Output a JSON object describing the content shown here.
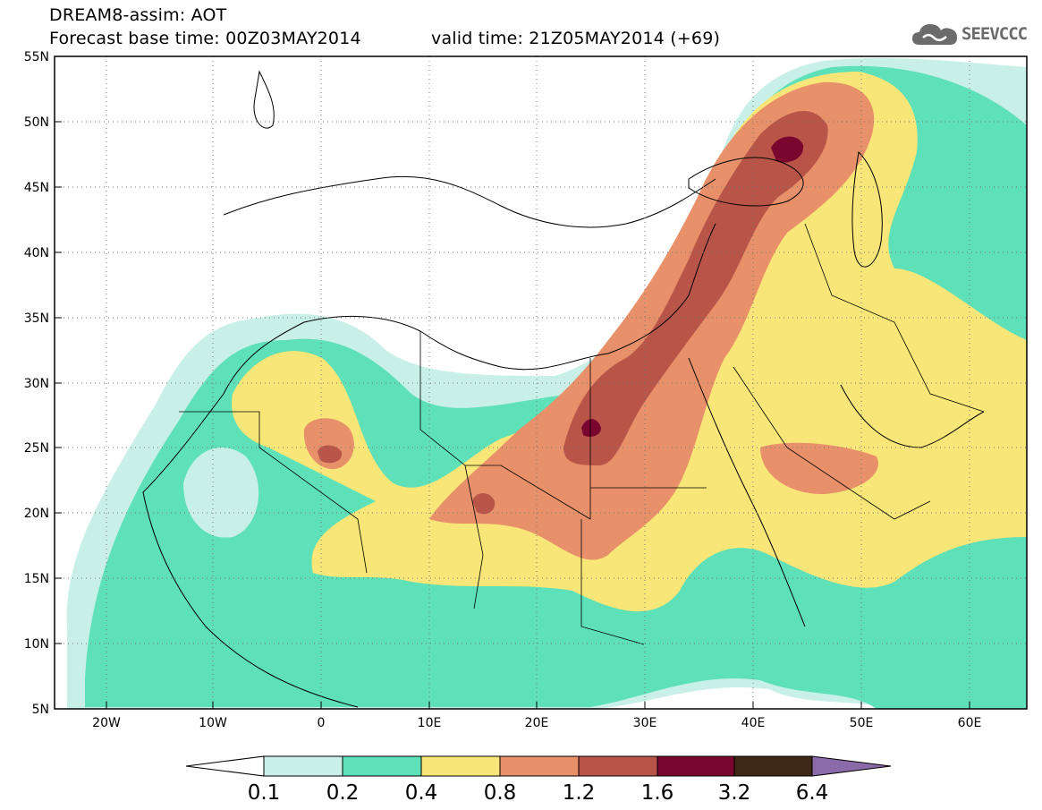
{
  "header": {
    "line1": "DREAM8-assim: AOT",
    "base_time": "Forecast base time: 00Z03MAY2014",
    "valid_time": "valid time: 21Z05MAY2014 (+69)"
  },
  "logo": {
    "text": "SEEVCCC",
    "icon": "cloud-icon",
    "color": "#6b6b6b"
  },
  "map": {
    "lon_range": [
      -25,
      65
    ],
    "lat_range": [
      5,
      55
    ],
    "lat_labels": [
      {
        "v": 55,
        "t": "55N"
      },
      {
        "v": 50,
        "t": "50N"
      },
      {
        "v": 45,
        "t": "45N"
      },
      {
        "v": 40,
        "t": "40N"
      },
      {
        "v": 35,
        "t": "35N"
      },
      {
        "v": 30,
        "t": "30N"
      },
      {
        "v": 25,
        "t": "25N"
      },
      {
        "v": 20,
        "t": "20N"
      },
      {
        "v": 15,
        "t": "15N"
      },
      {
        "v": 10,
        "t": "10N"
      },
      {
        "v": 5,
        "t": "5N"
      }
    ],
    "lon_labels": [
      {
        "v": -20,
        "t": "20W"
      },
      {
        "v": -10,
        "t": "10W"
      },
      {
        "v": 0,
        "t": "0"
      },
      {
        "v": 10,
        "t": "10E"
      },
      {
        "v": 20,
        "t": "20E"
      },
      {
        "v": 30,
        "t": "30E"
      },
      {
        "v": 40,
        "t": "40E"
      },
      {
        "v": 50,
        "t": "50E"
      },
      {
        "v": 60,
        "t": "60E"
      }
    ],
    "grid": "dotted"
  },
  "colorbar": {
    "labels": [
      "0.1",
      "0.2",
      "0.4",
      "0.8",
      "1.2",
      "1.6",
      "3.2",
      "6.4"
    ],
    "colors": [
      "#ffffff",
      "#c8f0e8",
      "#5ee0b8",
      "#f8e678",
      "#e8906a",
      "#b85548",
      "#7a0630",
      "#3e2818",
      "#8a6aa8"
    ]
  }
}
